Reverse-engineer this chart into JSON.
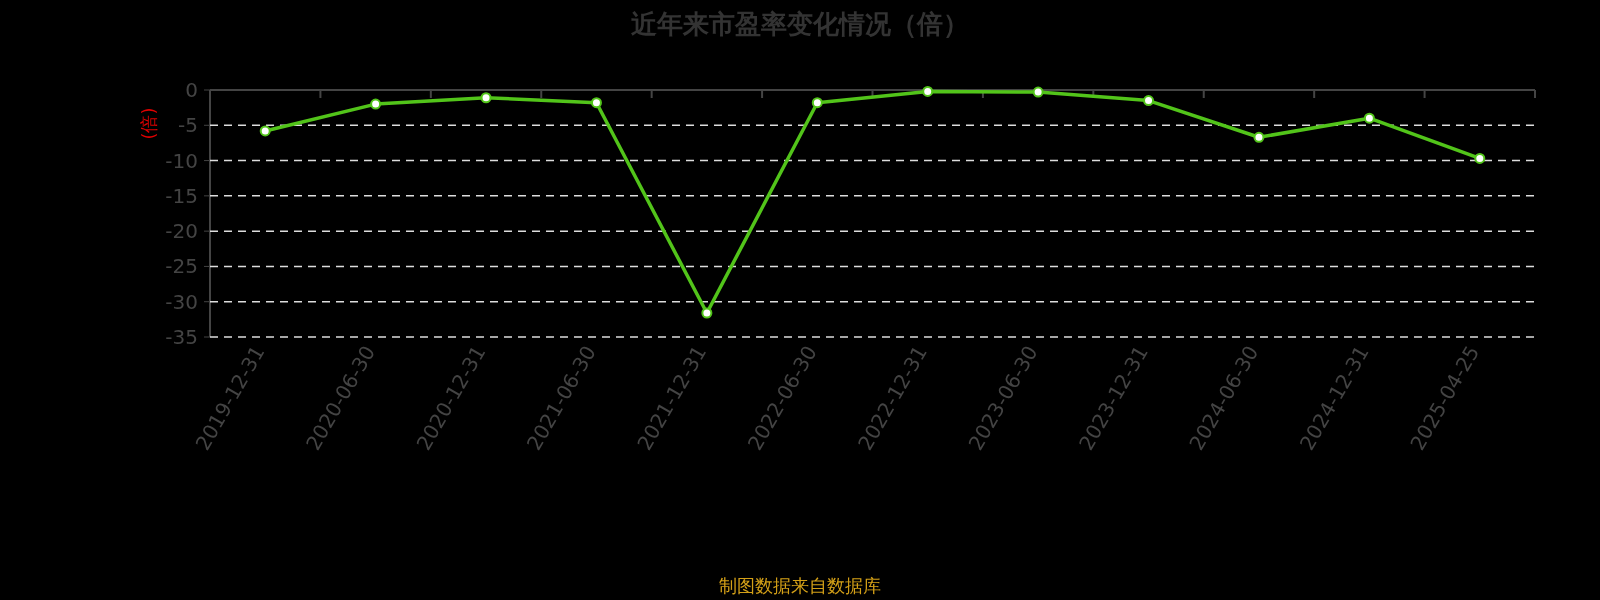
{
  "chart_data": {
    "type": "line",
    "title": "近年来市盈率变化情况（倍）",
    "ylabel": "(倍)",
    "annotations": [
      "制图数据来自数据库"
    ],
    "categories": [
      "2019-12-31",
      "2020-06-30",
      "2020-12-31",
      "2021-06-30",
      "2021-12-31",
      "2022-06-30",
      "2022-12-31",
      "2023-06-30",
      "2023-12-31",
      "2024-06-30",
      "2024-12-31",
      "2025-04-25"
    ],
    "series": [
      {
        "color": "#52c41a",
        "values": [
          -5.8,
          -2.0,
          -1.1,
          -1.8,
          -31.6,
          -1.8,
          -0.2,
          -0.3,
          -1.5,
          -6.7,
          -4.0,
          -9.7
        ]
      }
    ],
    "ylim": [
      -35,
      0
    ],
    "yticks": [
      0,
      -5,
      -10,
      -15,
      -20,
      -25,
      -30,
      -35
    ],
    "grid": "y",
    "marker": "circle",
    "line_style": "solid"
  }
}
